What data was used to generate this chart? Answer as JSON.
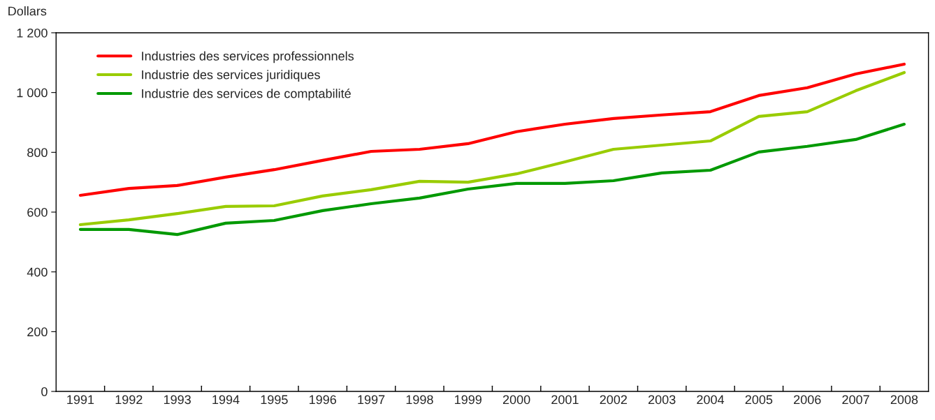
{
  "chart_data": {
    "type": "line",
    "ylabel": "Dollars",
    "categories": [
      "1991",
      "1992",
      "1993",
      "1994",
      "1995",
      "1996",
      "1997",
      "1998",
      "1999",
      "2000",
      "2001",
      "2002",
      "2003",
      "2004",
      "2005",
      "2006",
      "2007",
      "2008"
    ],
    "series": [
      {
        "name": "Industries des services professionnels",
        "color": "#ff0000",
        "values": [
          656,
          679,
          689,
          717,
          742,
          773,
          803,
          810,
          829,
          869,
          894,
          913,
          925,
          936,
          990,
          1016,
          1062,
          1095
        ]
      },
      {
        "name": "Industrie des services juridiques",
        "color": "#99cc00",
        "values": [
          558,
          574,
          595,
          619,
          621,
          654,
          675,
          703,
          700,
          728,
          768,
          810,
          824,
          838,
          920,
          936,
          1006,
          1067
        ]
      },
      {
        "name": "Industrie des services de comptabilité",
        "color": "#009900",
        "values": [
          542,
          542,
          525,
          563,
          572,
          605,
          628,
          647,
          677,
          696,
          696,
          705,
          731,
          740,
          801,
          820,
          843,
          894
        ]
      }
    ],
    "ylim": [
      0,
      1200
    ],
    "yticks": [
      0,
      200,
      400,
      600,
      800,
      {
        "value": 1000,
        "label": "1 000"
      },
      {
        "value": 1200,
        "label": "1 200"
      }
    ],
    "grid": false,
    "legend": "top left",
    "marker": "none",
    "line_style": "solid"
  }
}
